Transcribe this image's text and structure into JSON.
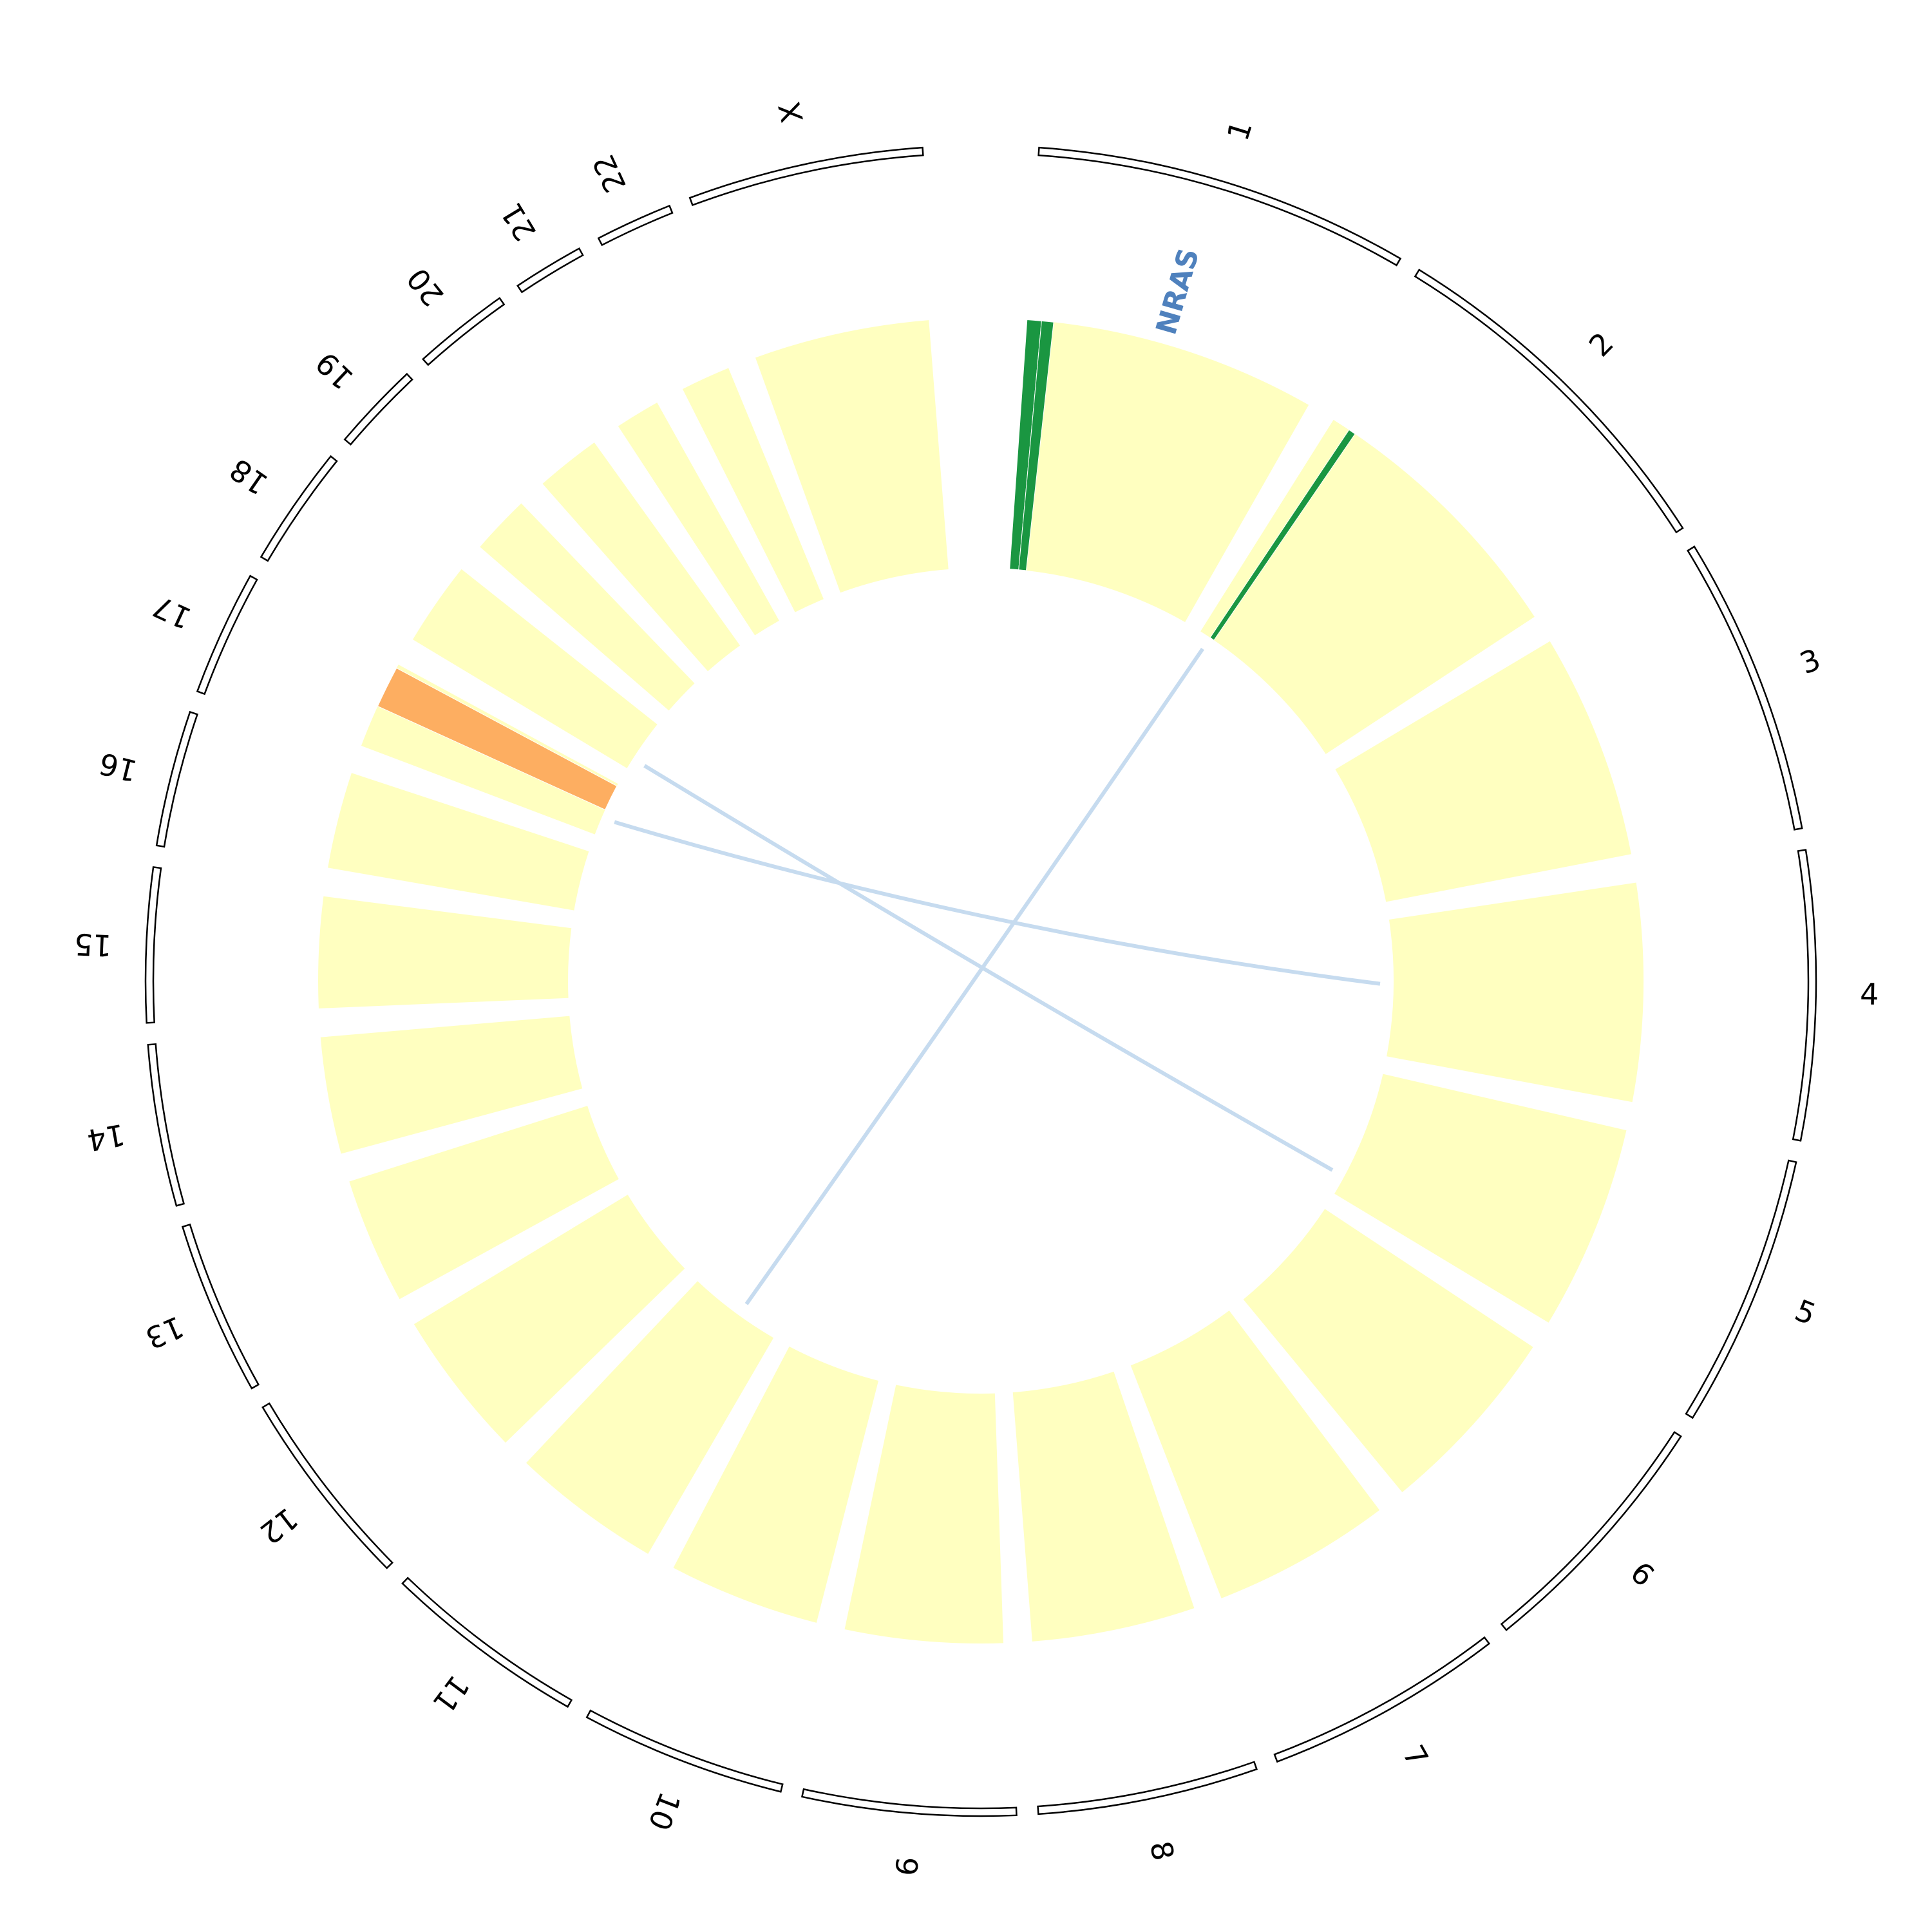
{
  "chart_data": {
    "type": "circos",
    "chromosomes": [
      "1",
      "2",
      "3",
      "4",
      "5",
      "6",
      "7",
      "8",
      "9",
      "10",
      "11",
      "12",
      "13",
      "14",
      "15",
      "16",
      "17",
      "18",
      "19",
      "20",
      "21",
      "22",
      "X"
    ],
    "lengths": [
      249,
      243,
      198,
      191,
      181,
      171,
      159,
      146,
      141,
      136,
      135,
      133,
      115,
      107,
      102,
      90,
      83,
      80,
      59,
      64,
      47,
      51,
      156
    ],
    "base_color": "#ffffc0",
    "segments": [
      {
        "chromosome": "1",
        "start": 0,
        "end": 12,
        "color": "#1a9641"
      },
      {
        "chromosome": "1",
        "start": 12,
        "end": 22,
        "color": "#1a9641"
      },
      {
        "chromosome": "2",
        "start": 20,
        "end": 26,
        "color": "#1a9641"
      },
      {
        "chromosome": "17",
        "start": 40,
        "end": 75,
        "color": "#fdae61"
      }
    ],
    "genes": [
      {
        "name": "NRAS",
        "chromosome": "1",
        "position": 115,
        "color": "#4f81bd"
      }
    ],
    "links": [
      {
        "source": {
          "chromosome": "2",
          "position": 20
        },
        "target": {
          "chromosome": "11",
          "position": 60
        }
      },
      {
        "source": {
          "chromosome": "17",
          "position": 30
        },
        "target": {
          "chromosome": "4",
          "position": 90
        }
      },
      {
        "source": {
          "chromosome": "18",
          "position": 20
        },
        "target": {
          "chromosome": "5",
          "position": 150
        }
      }
    ],
    "link_color": "#c6dbef"
  }
}
